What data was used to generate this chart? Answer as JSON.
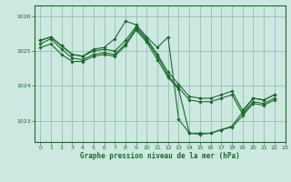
{
  "bg_color": "#cce8e0",
  "line_color": "#1a6b2a",
  "grid_color": "#88bbaa",
  "title": "Graphe pression niveau de la mer (hPa)",
  "xlim": [
    -0.5,
    23
  ],
  "ylim": [
    1022.4,
    1026.3
  ],
  "yticks": [
    1023,
    1024,
    1025,
    1026
  ],
  "xticks": [
    0,
    1,
    2,
    3,
    4,
    5,
    6,
    7,
    8,
    9,
    10,
    11,
    12,
    13,
    14,
    15,
    16,
    17,
    18,
    19,
    20,
    21,
    22,
    23
  ],
  "lines": [
    {
      "x": [
        0,
        1,
        2,
        3,
        4,
        5,
        6,
        7,
        8,
        9,
        10,
        11,
        12,
        13,
        14,
        15,
        16,
        17,
        18,
        19,
        20,
        21,
        22
      ],
      "y": [
        1025.3,
        1025.4,
        1025.15,
        1024.9,
        1024.85,
        1025.05,
        1025.1,
        1025.35,
        1025.85,
        1025.75,
        1025.4,
        1025.1,
        1025.4,
        1023.05,
        1022.65,
        1022.65,
        1022.65,
        1022.75,
        1022.85,
        1023.25,
        1023.65,
        1023.6,
        1023.75
      ]
    },
    {
      "x": [
        0,
        1,
        2,
        3,
        4,
        5,
        6,
        7,
        8,
        9,
        10,
        11,
        12,
        13,
        14,
        15,
        16,
        17,
        18,
        19,
        20,
        21,
        22
      ],
      "y": [
        1025.3,
        1025.4,
        1025.15,
        1024.9,
        1024.85,
        1025.0,
        1025.05,
        1025.0,
        1025.3,
        1025.7,
        1025.35,
        1024.9,
        1024.4,
        1024.05,
        1023.7,
        1023.65,
        1023.65,
        1023.75,
        1023.85,
        1023.3,
        1023.65,
        1023.6,
        1023.75
      ]
    },
    {
      "x": [
        0,
        1,
        2,
        3,
        4,
        5,
        6,
        7,
        8,
        9,
        10,
        11,
        12,
        13,
        14,
        15,
        16,
        17,
        18,
        19,
        20,
        21,
        22
      ],
      "y": [
        1025.2,
        1025.35,
        1025.05,
        1024.8,
        1024.75,
        1024.9,
        1024.95,
        1024.9,
        1025.2,
        1025.65,
        1025.3,
        1024.85,
        1024.3,
        1023.95,
        1023.6,
        1023.55,
        1023.55,
        1023.65,
        1023.75,
        1023.2,
        1023.55,
        1023.5,
        1023.65
      ]
    },
    {
      "x": [
        0,
        1,
        2,
        3,
        4,
        5,
        6,
        7,
        8,
        9,
        10,
        11,
        12,
        13,
        14,
        15,
        16,
        17,
        18,
        19,
        20,
        21,
        22
      ],
      "y": [
        1025.1,
        1025.2,
        1024.9,
        1024.7,
        1024.7,
        1024.85,
        1024.9,
        1024.85,
        1025.15,
        1025.6,
        1025.25,
        1024.75,
        1024.25,
        1023.9,
        1022.65,
        1022.62,
        1022.65,
        1022.75,
        1022.82,
        1023.15,
        1023.5,
        1023.45,
        1023.6
      ]
    }
  ]
}
